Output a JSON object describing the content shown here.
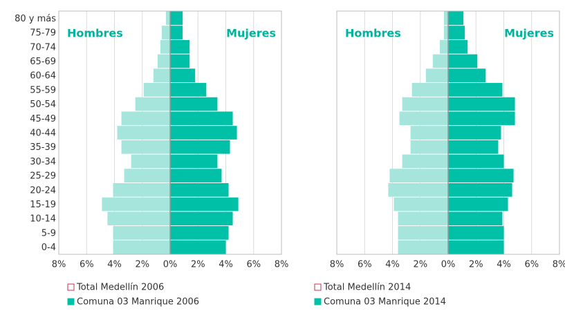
{
  "chart_data": [
    {
      "type": "bar",
      "orientation": "horizontal",
      "categories": [
        "0-4",
        "5-9",
        "10-14",
        "15-19",
        "20-24",
        "25-29",
        "30-34",
        "35-39",
        "40-44",
        "45-49",
        "50-54",
        "55-59",
        "60-64",
        "65-69",
        "70-74",
        "75-79",
        "80 y más"
      ],
      "annotations": [
        "Hombres",
        "Mujeres"
      ],
      "series": [
        {
          "name": "Total Medellín 2006",
          "color": "#a6e5dc",
          "legend_marker": "hollow",
          "legend_marker_color": "#c8324b",
          "values": [
            -4.1,
            -4.1,
            -4.5,
            -4.9,
            -4.1,
            -3.3,
            -2.8,
            -3.5,
            -3.8,
            -3.5,
            -2.5,
            -1.9,
            -1.2,
            -0.9,
            -0.7,
            -0.6,
            -0.3
          ]
        },
        {
          "name": "Comuna 03 Manrique 2006",
          "color": "#00c0a8",
          "legend_marker": "filled",
          "values": [
            4.0,
            4.2,
            4.5,
            4.9,
            4.2,
            3.7,
            3.4,
            4.3,
            4.8,
            4.5,
            3.4,
            2.6,
            1.8,
            1.4,
            1.4,
            0.9,
            0.9
          ]
        }
      ],
      "xlim": [
        -8,
        8
      ],
      "xticks": [
        {
          "value": -8,
          "label": "8%"
        },
        {
          "value": -6,
          "label": "6%"
        },
        {
          "value": -4,
          "label": "4%"
        },
        {
          "value": -2,
          "label": "2%"
        },
        {
          "value": 0,
          "label": "0%"
        },
        {
          "value": 2,
          "label": "2%"
        },
        {
          "value": 4,
          "label": "4%"
        },
        {
          "value": 6,
          "label": "6%"
        },
        {
          "value": 8,
          "label": "8%"
        }
      ],
      "grid": true
    },
    {
      "type": "bar",
      "orientation": "horizontal",
      "annotations": [
        "Hombres",
        "Mujeres"
      ],
      "series": [
        {
          "name": "Total Medellín 2014",
          "color": "#a6e5dc",
          "legend_marker": "hollow",
          "legend_marker_color": "#c8324b",
          "values": [
            -3.6,
            -3.6,
            -3.6,
            -3.9,
            -4.3,
            -4.2,
            -3.3,
            -2.7,
            -2.7,
            -3.5,
            -3.3,
            -2.6,
            -1.6,
            -1.1,
            -0.6,
            -0.3,
            -0.3
          ]
        },
        {
          "name": "Comuna 03 Manrique 2014",
          "color": "#00c0a8",
          "legend_marker": "filled",
          "values": [
            4.0,
            4.0,
            3.9,
            4.3,
            4.6,
            4.7,
            4.0,
            3.6,
            3.8,
            4.8,
            4.8,
            3.9,
            2.7,
            2.1,
            1.4,
            1.2,
            1.1
          ]
        }
      ],
      "xlim": [
        -8,
        8
      ],
      "xticks": [
        {
          "value": -8,
          "label": "8%"
        },
        {
          "value": -6,
          "label": "6%"
        },
        {
          "value": -4,
          "label": "4%"
        },
        {
          "value": -2,
          "label": "2%"
        },
        {
          "value": 0,
          "label": "0%"
        },
        {
          "value": 2,
          "label": "2%"
        },
        {
          "value": 4,
          "label": "4%"
        },
        {
          "value": 6,
          "label": "6%"
        },
        {
          "value": 8,
          "label": "8%"
        }
      ],
      "grid": true
    }
  ]
}
